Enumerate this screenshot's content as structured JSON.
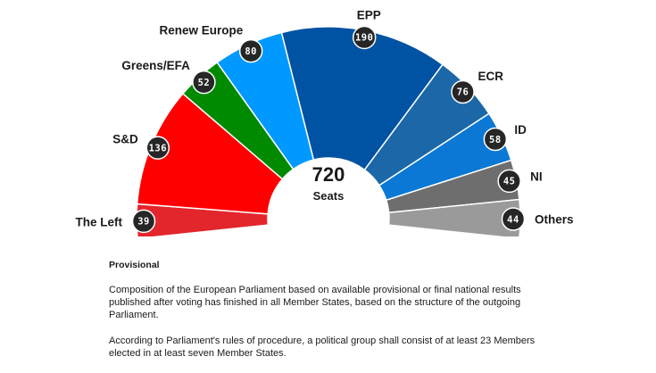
{
  "chart_data": {
    "type": "pie",
    "variant": "parliament-hemicycle",
    "total_value": "720",
    "total_label": "Seats",
    "series": [
      {
        "name": "The Left",
        "value": 39,
        "color": "#e3262c",
        "label_side": "left"
      },
      {
        "name": "S&D",
        "value": 136,
        "color": "#ff0000",
        "label_side": "left"
      },
      {
        "name": "Greens/EFA",
        "value": 52,
        "color": "#008a00",
        "label_side": "left"
      },
      {
        "name": "Renew Europe",
        "value": 80,
        "color": "#0099ff",
        "label_side": "left"
      },
      {
        "name": "EPP",
        "value": 190,
        "color": "#0052a3",
        "label_side": "right"
      },
      {
        "name": "ECR",
        "value": 76,
        "color": "#1b67a8",
        "label_side": "right"
      },
      {
        "name": "ID",
        "value": 58,
        "color": "#0a78d4",
        "label_side": "right"
      },
      {
        "name": "NI",
        "value": 45,
        "color": "#6e6e6e",
        "label_side": "right"
      },
      {
        "name": "Others",
        "value": 44,
        "color": "#9a9a9a",
        "label_side": "right"
      }
    ],
    "legend": "none"
  },
  "notes": {
    "heading": "Provisional",
    "paragraph1": "Composition of the European Parliament based on available provisional or final national results published after voting has finished in all Member States, based on the structure of the outgoing Parliament.",
    "paragraph2": "According to Parliament's rules of procedure, a political group shall consist of at least 23 Members elected in at least seven Member States."
  }
}
